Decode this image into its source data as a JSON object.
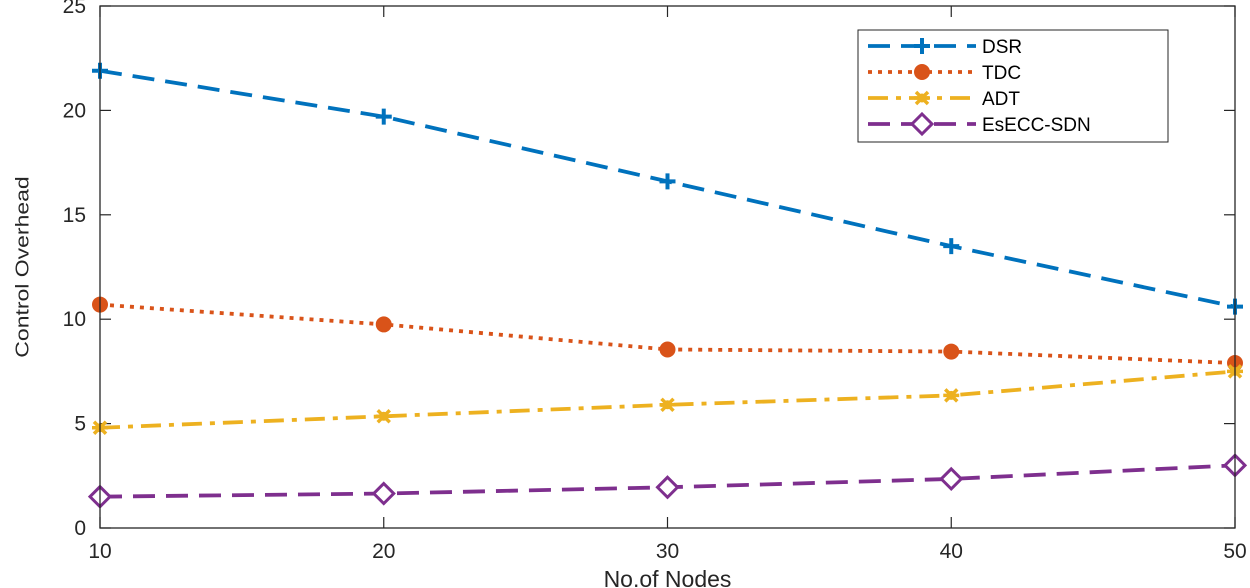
{
  "chart_data": {
    "type": "line",
    "title": "",
    "xlabel": "No.of Nodes",
    "ylabel": "Control Overhead",
    "x": [
      10,
      20,
      30,
      40,
      50
    ],
    "xlim": [
      10,
      50
    ],
    "ylim": [
      0,
      25
    ],
    "xticks": [
      10,
      20,
      30,
      40,
      50
    ],
    "yticks": [
      0,
      5,
      10,
      15,
      20,
      25
    ],
    "grid": false,
    "legend_position": "top-right",
    "series": [
      {
        "name": "DSR",
        "values": [
          21.9,
          19.7,
          16.6,
          13.5,
          10.6
        ],
        "color": "#0072BD",
        "marker": "plus",
        "line": "dashed"
      },
      {
        "name": "TDC",
        "values": [
          10.7,
          9.75,
          8.55,
          8.45,
          7.9
        ],
        "color": "#D95319",
        "marker": "circle",
        "line": "dotted"
      },
      {
        "name": "ADT",
        "values": [
          4.8,
          5.35,
          5.9,
          6.35,
          7.5
        ],
        "color": "#EDB120",
        "marker": "asterisk",
        "line": "dashdot"
      },
      {
        "name": "EsECC-SDN",
        "values": [
          1.5,
          1.65,
          1.95,
          2.35,
          3.0
        ],
        "color": "#7E2F8E",
        "marker": "diamond",
        "line": "dashed"
      }
    ]
  }
}
